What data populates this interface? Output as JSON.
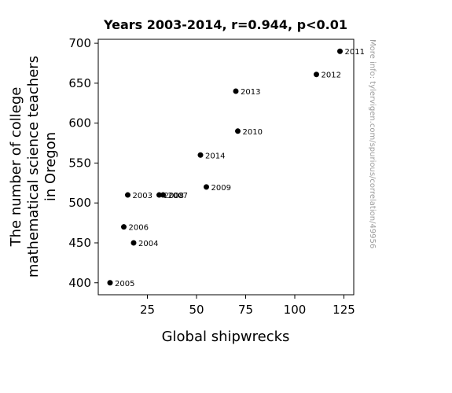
{
  "chart_data": {
    "type": "scatter",
    "title": "Years 2003-2014, r=0.944, p<0.01",
    "xlabel": "Global shipwrecks",
    "ylabel": [
      "The number of college",
      "mathematical science teachers",
      "in Oregon"
    ],
    "xlim": [
      0,
      130
    ],
    "ylim": [
      385,
      705
    ],
    "xticks": [
      25,
      50,
      75,
      100,
      125
    ],
    "yticks": [
      400,
      450,
      500,
      550,
      600,
      650,
      700
    ],
    "grid": false,
    "points": [
      {
        "label": "2003",
        "x": 15,
        "y": 510
      },
      {
        "label": "2004",
        "x": 18,
        "y": 450
      },
      {
        "label": "2005",
        "x": 6,
        "y": 400
      },
      {
        "label": "2006",
        "x": 13,
        "y": 470
      },
      {
        "label": "2007",
        "x": 33,
        "y": 510
      },
      {
        "label": "2008",
        "x": 31,
        "y": 510
      },
      {
        "label": "2009",
        "x": 55,
        "y": 520
      },
      {
        "label": "2010",
        "x": 71,
        "y": 590
      },
      {
        "label": "2011",
        "x": 123,
        "y": 690
      },
      {
        "label": "2012",
        "x": 111,
        "y": 661
      },
      {
        "label": "2013",
        "x": 70,
        "y": 640
      },
      {
        "label": "2014",
        "x": 52,
        "y": 560
      }
    ],
    "marker_color": "#000000"
  },
  "watermark": "More info: tylervigen.com/spurious/correlation/49956"
}
